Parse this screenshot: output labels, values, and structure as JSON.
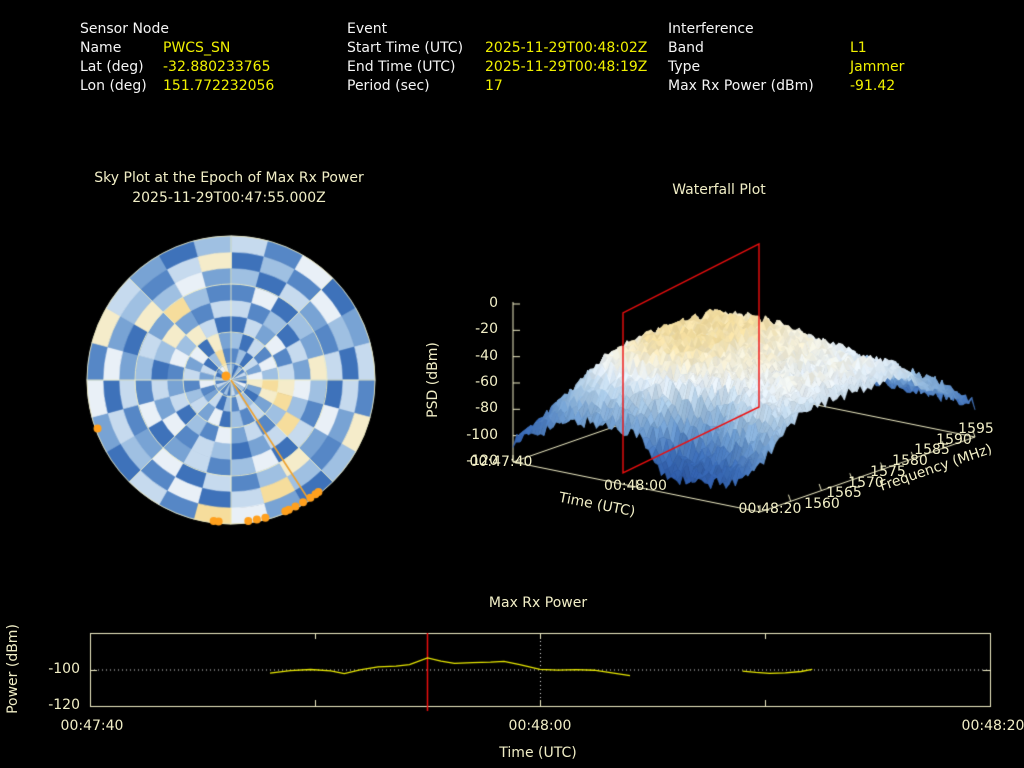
{
  "header": {
    "sensor": {
      "title": "Sensor Node",
      "rows": [
        {
          "label": "Name",
          "value": "PWCS_SN"
        },
        {
          "label": "Lat (deg)",
          "value": "-32.880233765"
        },
        {
          "label": "Lon (deg)",
          "value": "151.772232056"
        }
      ]
    },
    "event": {
      "title": "Event",
      "rows": [
        {
          "label": "Start Time (UTC)",
          "value": "2025-11-29T00:48:02Z"
        },
        {
          "label": "End Time (UTC)",
          "value": "2025-11-29T00:48:19Z"
        },
        {
          "label": "Period (sec)",
          "value": "17"
        }
      ]
    },
    "interference": {
      "title": "Interference",
      "rows": [
        {
          "label": "Band",
          "value": "L1"
        },
        {
          "label": "Type",
          "value": "Jammer"
        },
        {
          "label": "Max Rx Power (dBm)",
          "value": "-91.42"
        }
      ]
    }
  },
  "sky_plot": {
    "title": "Sky Plot at the Epoch of Max Rx Power",
    "subtitle": "2025-11-29T00:47:55.000Z"
  },
  "waterfall": {
    "title": "Waterfall Plot",
    "z_label": "PSD (dBm)",
    "time_label": "Time (UTC)",
    "freq_label": "Frequency (MHz)",
    "z_ticks": [
      "0",
      "-20",
      "-40",
      "-60",
      "-80",
      "-100",
      "-120"
    ],
    "time_ticks": [
      "00:47:40",
      "00:48:00",
      "00:48:20"
    ],
    "freq_ticks": [
      "1560",
      "1565",
      "1570",
      "1575",
      "1580",
      "1585",
      "1590",
      "1595"
    ]
  },
  "power_plot": {
    "title": "Max Rx Power",
    "y_label": "Power (dBm)",
    "x_label": "Time (UTC)",
    "y_ticks": [
      "-100",
      "-120"
    ],
    "x_ticks": [
      "00:47:40",
      "00:48:00",
      "00:48:20"
    ]
  },
  "colors": {
    "background": "#000000",
    "header_label": "#f5f5f5",
    "header_value": "#f0f000",
    "plot_text": "#f1eec6",
    "axis_line": "#f1eec6",
    "trace_yellow": "#e9e900",
    "epoch_red": "#ee1republic0e0e",
    "epoch_red_hex": "#ee0e0e",
    "marker_orange": "#ffa01e",
    "trajectory_orange": "#eda231",
    "guide_white": "#e0e0e0",
    "sky_palette": [
      "#24509e",
      "#2f5fae",
      "#3e72ba",
      "#5687c6",
      "#78a3d4",
      "#9fc0e2",
      "#c6daee",
      "#e9f0f7",
      "#f5ecca",
      "#f6dd9c"
    ],
    "surface_palette": [
      "#2a55a2",
      "#3e6fb8",
      "#6d9bce",
      "#aac9e4",
      "#e8f0f6",
      "#f3ecd2",
      "#f2dc9e"
    ]
  },
  "chart_data": [
    {
      "type": "heatmap",
      "name": "sky-plot-heatmap",
      "description": "Polar azimuth/elevation power map at epoch of max Rx power; palette index 0 = low (dark blue), 9 = high (cream)",
      "sectors": 24,
      "rings": 9,
      "ring_values_inner_to_outer": [
        "425364275346253463524785",
        "352647842563526437462593",
        "526375984635274653647284",
        "264736895364735264375862",
        "635264759642563746258436",
        "372548536275364273564953",
        "526436274853627436428574",
        "253752643596273562745368",
        "637246385247936247386425"
      ],
      "grid_rings_elevation_deg": [
        0,
        30,
        60
      ],
      "track_marker_azimuths_deg": [
        142,
        143.5,
        146,
        149.5,
        153,
        156,
        157.5,
        166,
        169.5,
        173,
        185,
        187,
        250
      ],
      "trajectory_azimuth_deg": 147,
      "zenith_marker": true
    },
    {
      "type": "heatmap",
      "name": "waterfall-psd",
      "rendered_as": "3d-surface",
      "x": "time_utc",
      "x_start": "00:47:40",
      "x_end": "00:48:20",
      "x_step_sec": 4,
      "y": "frequency_mhz",
      "y_values": [
        1560,
        1562.5,
        1565,
        1567.5,
        1570,
        1572.5,
        1575,
        1577.5,
        1580,
        1582.5,
        1585,
        1587.5,
        1590,
        1592.5,
        1595
      ],
      "unit": "dBm",
      "zlim": [
        -120,
        0
      ],
      "epoch_slice_time": "00:47:55",
      "values_time_rows": [
        [
          -104,
          -100,
          -98,
          -97,
          -96,
          -96,
          -96,
          -96,
          -96,
          -97,
          -98,
          -100,
          -101,
          -103,
          -105
        ],
        [
          -93,
          -82,
          -74,
          -71,
          -69,
          -69,
          -69,
          -69,
          -69,
          -71,
          -74,
          -82,
          -84,
          -92,
          -99
        ],
        [
          -83,
          -63,
          -50,
          -44,
          -42,
          -41,
          -42,
          -41,
          -42,
          -44,
          -50,
          -63,
          -67,
          -80,
          -93
        ],
        [
          -78,
          -55,
          -40,
          -33,
          -30,
          -29,
          -30,
          -29,
          -30,
          -33,
          -40,
          -55,
          -60,
          -75,
          -90
        ],
        [
          -78,
          -54,
          -40,
          -32,
          -30,
          -28,
          -30,
          -29,
          -30,
          -33,
          -40,
          -56,
          -60,
          -75,
          -90
        ],
        [
          -78,
          -55,
          -40,
          -33,
          -29,
          -29,
          -30,
          -28,
          -30,
          -33,
          -41,
          -55,
          -61,
          -74,
          -90
        ],
        [
          -106,
          -95,
          -47,
          -40,
          -38,
          -37,
          -38,
          -37,
          -38,
          -40,
          -47,
          -60,
          -65,
          -78,
          -92
        ],
        [
          -108,
          -98,
          -75,
          -42,
          -39,
          -38,
          -39,
          -38,
          -39,
          -42,
          -48,
          -61,
          -66,
          -79,
          -92
        ],
        [
          -107,
          -96,
          -54,
          -48,
          -46,
          -45,
          -46,
          -45,
          -46,
          -48,
          -54,
          -66,
          -70,
          -82,
          -94
        ],
        [
          -100,
          -80,
          -52,
          -46,
          -44,
          -43,
          -44,
          -43,
          -44,
          -46,
          -52,
          -64,
          -69,
          -81,
          -93
        ],
        [
          -87,
          -71,
          -60,
          -55,
          -53,
          -52,
          -53,
          -52,
          -53,
          -55,
          -60,
          -71,
          -74,
          -85,
          -95
        ]
      ]
    },
    {
      "type": "line",
      "name": "max-rx-power",
      "title": "Max Rx Power",
      "x_unit": "seconds after 00:47:40",
      "xlim": [
        0,
        40
      ],
      "ylim": [
        -120,
        -80
      ],
      "dotted_guide_dbm": -100,
      "vertical_gridline_s": 20,
      "epoch_marker_s": 15,
      "segments": [
        {
          "t": [
            8.0,
            8.9,
            9.8,
            10.7,
            11.3,
            12.0,
            12.8,
            13.6,
            14.2,
            15.0,
            15.6,
            16.2,
            17.0,
            17.8,
            18.4,
            19.1,
            20.0,
            20.8,
            21.6,
            22.4,
            23.2,
            24.0
          ],
          "p": [
            -102.0,
            -100.6,
            -100.0,
            -100.7,
            -102.3,
            -100.2,
            -98.6,
            -98.2,
            -97.3,
            -93.6,
            -95.4,
            -96.6,
            -96.2,
            -96.0,
            -95.6,
            -97.3,
            -99.9,
            -100.3,
            -100.1,
            -100.4,
            -101.9,
            -103.4
          ]
        },
        {
          "t": [
            29.0,
            29.6,
            30.2,
            30.9,
            31.6,
            32.1
          ],
          "p": [
            -100.9,
            -101.6,
            -102.1,
            -101.9,
            -101.1,
            -99.9
          ]
        }
      ]
    }
  ]
}
